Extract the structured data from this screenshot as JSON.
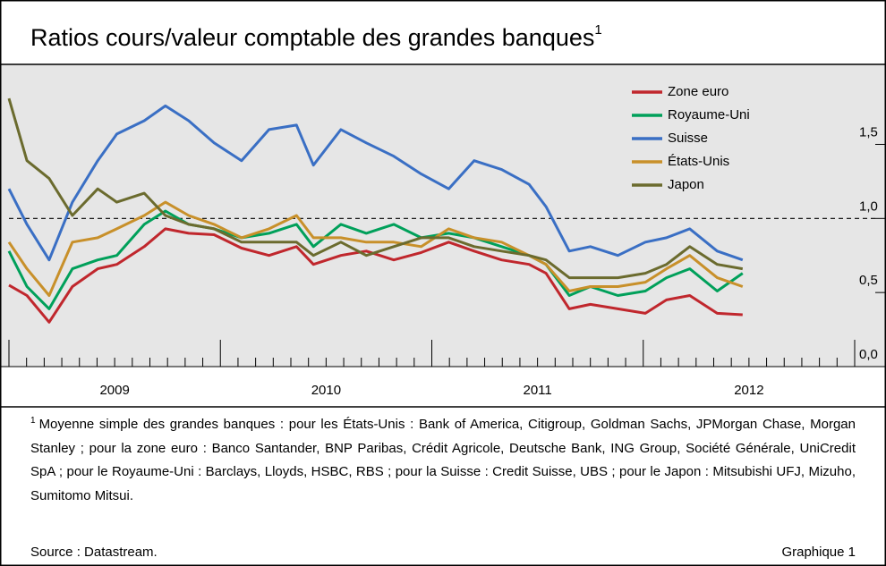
{
  "chart_data": {
    "type": "line",
    "title": "Ratios cours/valeur comptable des grandes banques",
    "title_note": "1",
    "x": [
      2009.0,
      2009.085,
      2009.19,
      2009.3,
      2009.42,
      2009.51,
      2009.64,
      2009.74,
      2009.85,
      2009.97,
      2010.1,
      2010.23,
      2010.36,
      2010.44,
      2010.57,
      2010.69,
      2010.82,
      2010.95,
      2011.08,
      2011.2,
      2011.33,
      2011.46,
      2011.54,
      2011.65,
      2011.75,
      2011.88,
      2012.01,
      2012.11,
      2012.22,
      2012.35,
      2012.47
    ],
    "series": [
      {
        "name": "Zone euro",
        "color": "#c0272d",
        "values": [
          0.55,
          0.48,
          0.3,
          0.54,
          0.66,
          0.69,
          0.81,
          0.93,
          0.9,
          0.89,
          0.8,
          0.75,
          0.81,
          0.69,
          0.75,
          0.78,
          0.72,
          0.77,
          0.84,
          0.78,
          0.72,
          0.69,
          0.63,
          0.39,
          0.42,
          0.39,
          0.36,
          0.45,
          0.48,
          0.36,
          0.35
        ]
      },
      {
        "name": "Royaume-Uni",
        "color": "#00a05a",
        "values": [
          0.78,
          0.54,
          0.39,
          0.66,
          0.72,
          0.75,
          0.96,
          1.05,
          0.96,
          0.93,
          0.87,
          0.9,
          0.96,
          0.81,
          0.96,
          0.9,
          0.96,
          0.87,
          0.9,
          0.87,
          0.81,
          0.75,
          0.69,
          0.48,
          0.54,
          0.48,
          0.51,
          0.6,
          0.66,
          0.51,
          0.63
        ]
      },
      {
        "name": "Suisse",
        "color": "#3a6fc4",
        "values": [
          1.2,
          0.96,
          0.72,
          1.11,
          1.39,
          1.57,
          1.66,
          1.76,
          1.66,
          1.51,
          1.39,
          1.6,
          1.63,
          1.36,
          1.6,
          1.51,
          1.42,
          1.3,
          1.2,
          1.39,
          1.33,
          1.23,
          1.08,
          0.78,
          0.81,
          0.75,
          0.84,
          0.87,
          0.93,
          0.78,
          0.72
        ]
      },
      {
        "name": "États-Unis",
        "color": "#c8902a",
        "values": [
          0.84,
          0.66,
          0.48,
          0.84,
          0.87,
          0.93,
          1.02,
          1.11,
          1.02,
          0.96,
          0.87,
          0.93,
          1.02,
          0.87,
          0.87,
          0.84,
          0.84,
          0.81,
          0.93,
          0.87,
          0.84,
          0.75,
          0.69,
          0.51,
          0.54,
          0.54,
          0.57,
          0.66,
          0.75,
          0.6,
          0.54
        ]
      },
      {
        "name": "Japon",
        "color": "#6b6b2e",
        "values": [
          1.81,
          1.39,
          1.27,
          1.02,
          1.2,
          1.11,
          1.17,
          1.02,
          0.96,
          0.93,
          0.84,
          0.84,
          0.84,
          0.75,
          0.84,
          0.75,
          0.81,
          0.87,
          0.87,
          0.81,
          0.78,
          0.75,
          0.72,
          0.6,
          0.6,
          0.6,
          0.63,
          0.69,
          0.81,
          0.69,
          0.66
        ]
      }
    ],
    "xlim": [
      2009,
      2013
    ],
    "xticks": [
      {
        "value": 2009.5,
        "label": "2009"
      },
      {
        "value": 2010.5,
        "label": "2010"
      },
      {
        "value": 2011.5,
        "label": "2011"
      },
      {
        "value": 2012.5,
        "label": "2012"
      }
    ],
    "ylim": [
      0,
      2.04
    ],
    "yticks": [
      {
        "value": 0,
        "label": "0,0"
      },
      {
        "value": 0.5,
        "label": "0,5"
      },
      {
        "value": 1.0,
        "label": "1,0"
      },
      {
        "value": 1.5,
        "label": "1,5"
      }
    ],
    "reference_line": 1.0,
    "legend": "top-right",
    "background": "#e6e6e6"
  },
  "footnote": {
    "marker": "1",
    "text": "Moyenne simple des grandes banques : pour les États-Unis : Bank of America, Citigroup, Goldman Sachs, JPMorgan Chase, Morgan Stanley ; pour la zone euro : Banco Santander, BNP Paribas, Crédit Agricole, Deutsche Bank, ING Group, Société Générale, UniCredit SpA ; pour le Royaume-Uni : Barclays, Lloyds, HSBC, RBS ; pour la Suisse : Credit Suisse, UBS ; pour le Japon : Mitsubishi UFJ, Mizuho, Sumitomo Mitsui."
  },
  "source": "Source : Datastream.",
  "figure_label": "Graphique 1"
}
